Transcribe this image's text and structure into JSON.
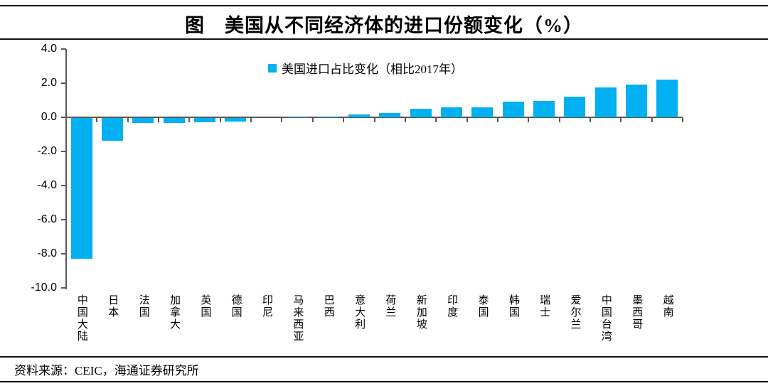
{
  "page": {
    "title": "图　美国从不同经济体的进口份额变化（%）",
    "source_note": "资料来源：CEIC，海通证券研究所"
  },
  "legend": {
    "label": "美国进口占比变化（相比2017年）",
    "swatch_color": "#00B0F0"
  },
  "chart_data": {
    "type": "bar",
    "title": "图　美国从不同经济体的进口份额变化（%）",
    "legend": [
      "美国进口占比变化（相比2017年）"
    ],
    "legend_position": "top-center",
    "categories": [
      "中国大陆",
      "日本",
      "法国",
      "加拿大",
      "英国",
      "德国",
      "印尼",
      "马来西亚",
      "巴西",
      "意大利",
      "荷兰",
      "新加坡",
      "印度",
      "泰国",
      "韩国",
      "瑞士",
      "爱尔兰",
      "中国台湾",
      "墨西哥",
      "越南"
    ],
    "values": [
      -8.25,
      -1.35,
      -0.3,
      -0.3,
      -0.25,
      -0.2,
      0,
      0.02,
      0.05,
      0.15,
      0.27,
      0.52,
      0.58,
      0.6,
      0.9,
      0.95,
      1.22,
      1.75,
      1.9,
      2.2
    ],
    "unit": "%",
    "ylim": [
      -10,
      4
    ],
    "ytick_step": 2,
    "ytick_labels": [
      "4.0",
      "2.0",
      "0.0",
      "-2.0",
      "-4.0",
      "-6.0",
      "-8.0",
      "-10.0"
    ],
    "bar_color": "#00B0F0",
    "axis_color": "#595959",
    "grid": false
  }
}
